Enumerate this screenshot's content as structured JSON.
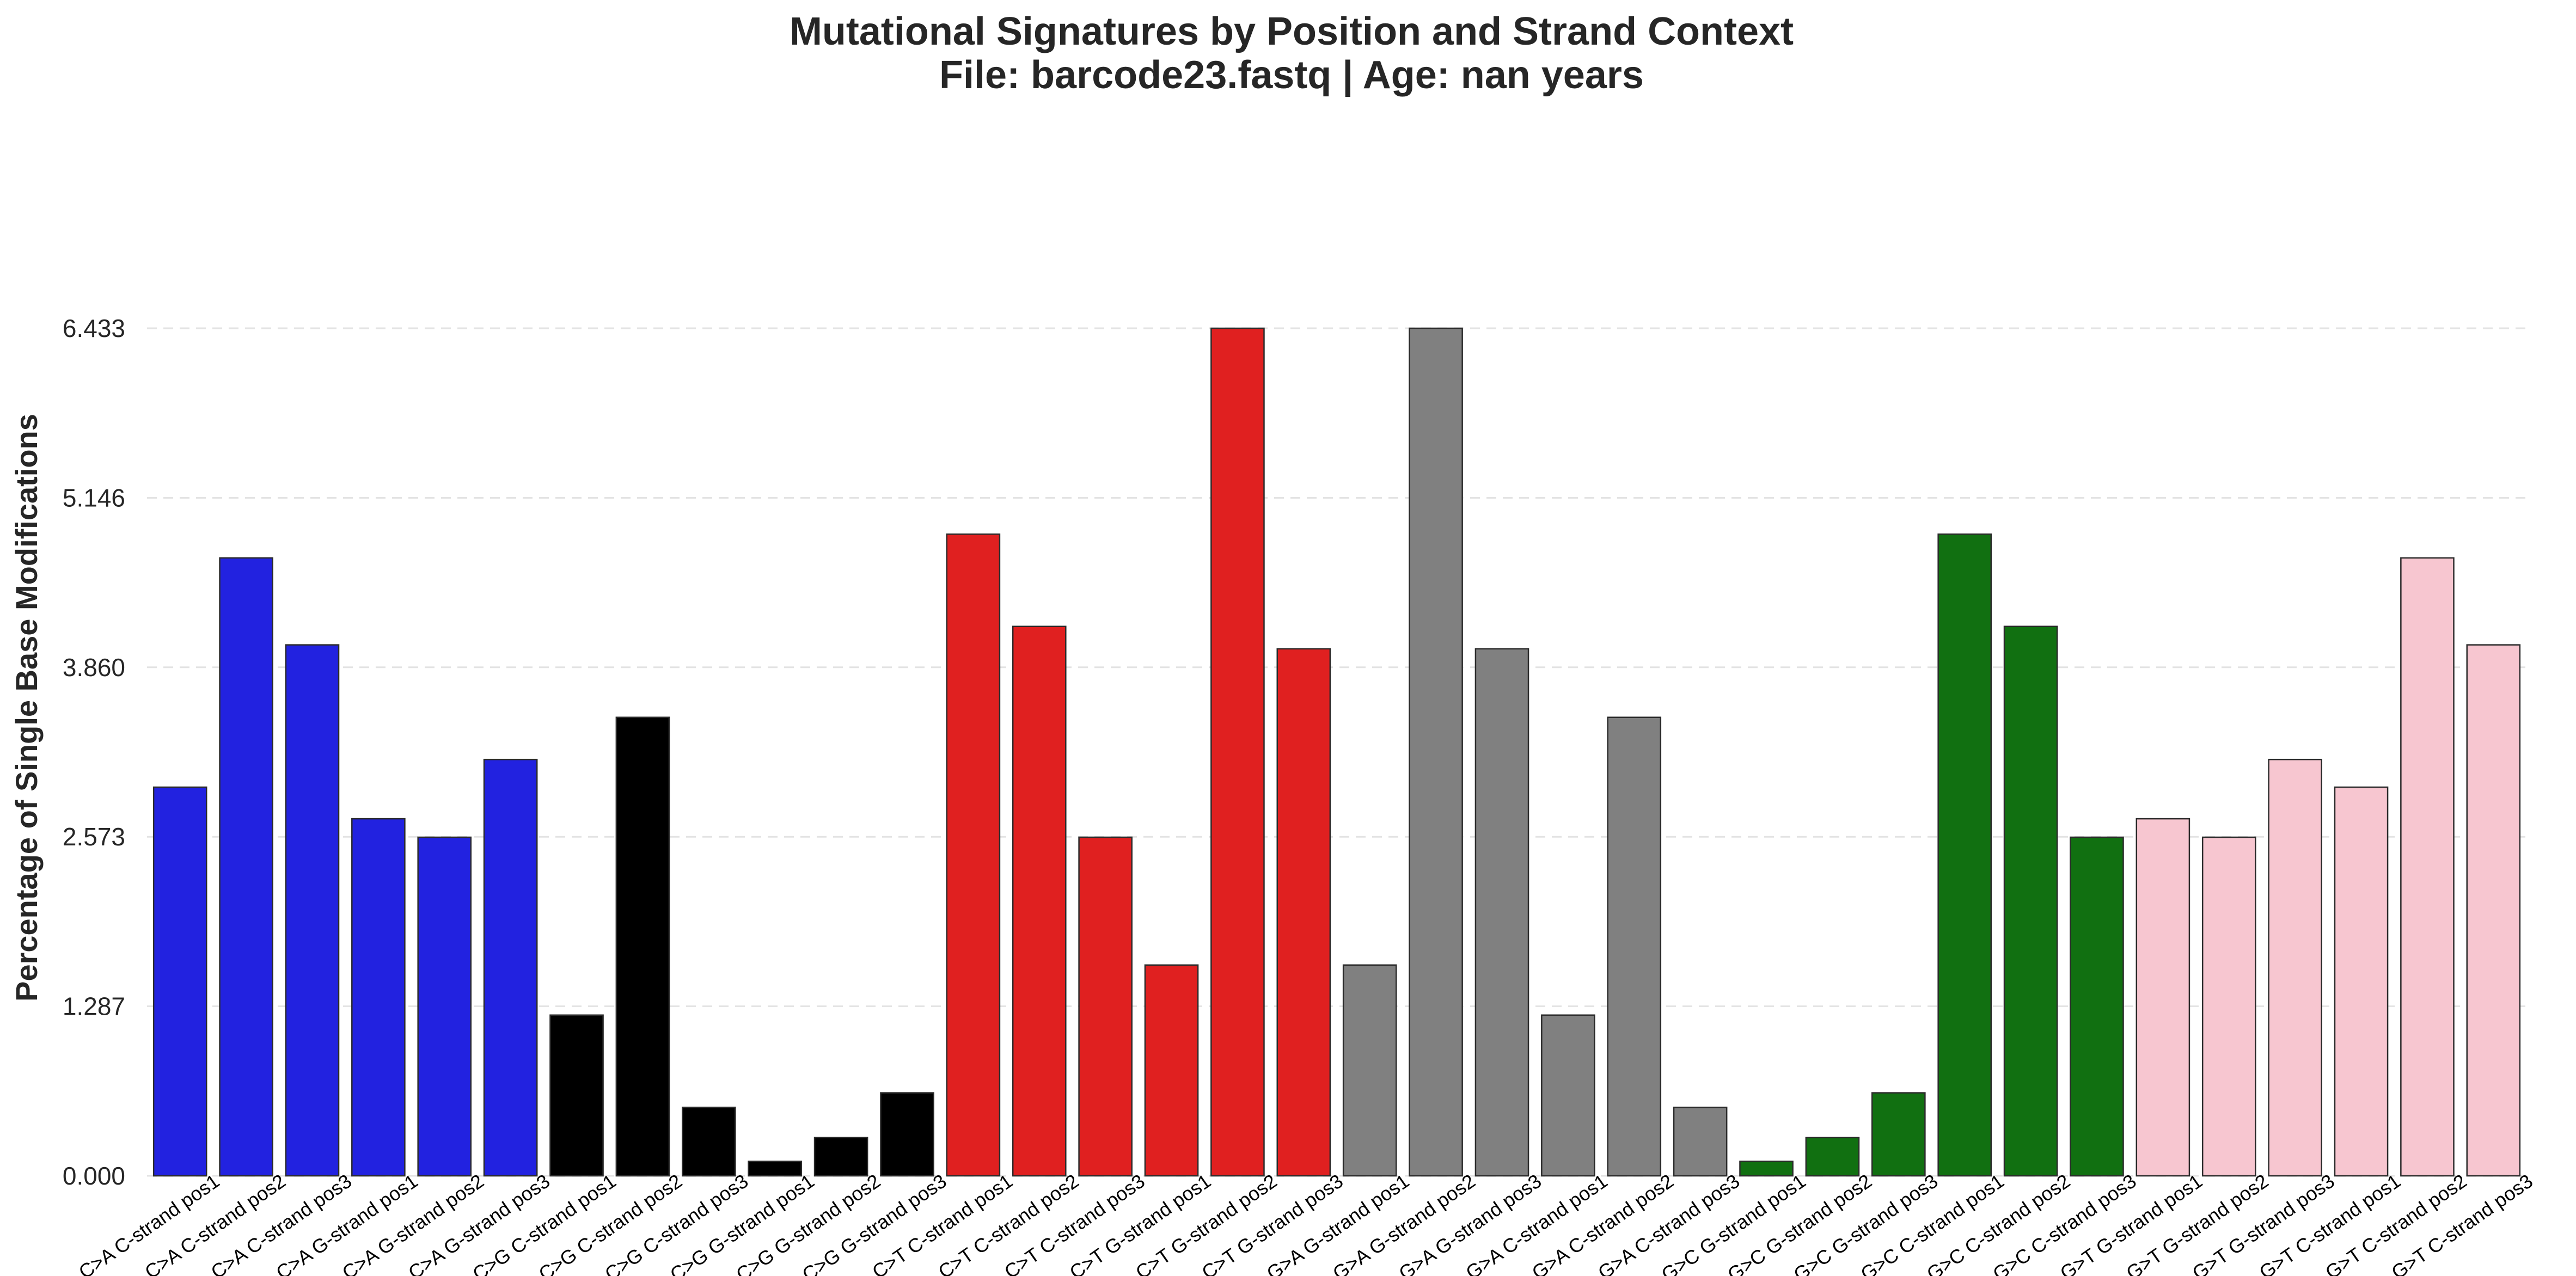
{
  "chart_data": {
    "type": "bar",
    "title": "Mutational Signatures by Position and Strand Context",
    "subtitle": "File: barcode23.fastq | Age: nan years",
    "xlabel": "",
    "ylabel": "Percentage of Single Base Modifications",
    "ylim": [
      0,
      6.433
    ],
    "yticks": [
      "0.000",
      "1.287",
      "2.573",
      "3.860",
      "5.146",
      "6.433"
    ],
    "grid": "horizontal dashed",
    "legend": "none",
    "categories": [
      "C>A C-strand pos1",
      "C>A C-strand pos2",
      "C>A C-strand pos3",
      "C>A G-strand pos1",
      "C>A G-strand pos2",
      "C>A G-strand pos3",
      "C>G C-strand pos1",
      "C>G C-strand pos2",
      "C>G C-strand pos3",
      "C>G G-strand pos1",
      "C>G G-strand pos2",
      "C>G G-strand pos3",
      "C>T C-strand pos1",
      "C>T C-strand pos2",
      "C>T C-strand pos3",
      "C>T G-strand pos1",
      "C>T G-strand pos2",
      "C>T G-strand pos3",
      "G>A G-strand pos1",
      "G>A G-strand pos2",
      "G>A G-strand pos3",
      "G>A C-strand pos1",
      "G>A C-strand pos2",
      "G>A C-strand pos3",
      "G>C G-strand pos1",
      "G>C G-strand pos2",
      "G>C G-strand pos3",
      "G>C C-strand pos1",
      "G>C C-strand pos2",
      "G>C C-strand pos3",
      "G>T G-strand pos1",
      "G>T G-strand pos2",
      "G>T G-strand pos3",
      "G>T C-strand pos1",
      "G>T C-strand pos2",
      "G>T C-strand pos3"
    ],
    "values": [
      2.95,
      4.69,
      4.03,
      2.71,
      2.57,
      3.16,
      1.22,
      3.48,
      0.52,
      0.11,
      0.29,
      0.63,
      4.87,
      4.17,
      2.57,
      1.6,
      6.433,
      4.0,
      1.6,
      6.433,
      4.0,
      1.22,
      3.48,
      0.52,
      0.11,
      0.29,
      0.63,
      4.87,
      4.17,
      2.57,
      2.71,
      2.57,
      3.16,
      2.95,
      4.69,
      4.03
    ],
    "colors": [
      "#2222e0",
      "#2222e0",
      "#2222e0",
      "#2222e0",
      "#2222e0",
      "#2222e0",
      "#000000",
      "#000000",
      "#000000",
      "#000000",
      "#000000",
      "#000000",
      "#e02020",
      "#e02020",
      "#e02020",
      "#e02020",
      "#e02020",
      "#e02020",
      "#808080",
      "#808080",
      "#808080",
      "#808080",
      "#808080",
      "#808080",
      "#117011",
      "#117011",
      "#117011",
      "#117011",
      "#117011",
      "#117011",
      "#f7c6d0",
      "#f7c6d0",
      "#f7c6d0",
      "#f7c6d0",
      "#f7c6d0",
      "#f7c6d0"
    ]
  }
}
